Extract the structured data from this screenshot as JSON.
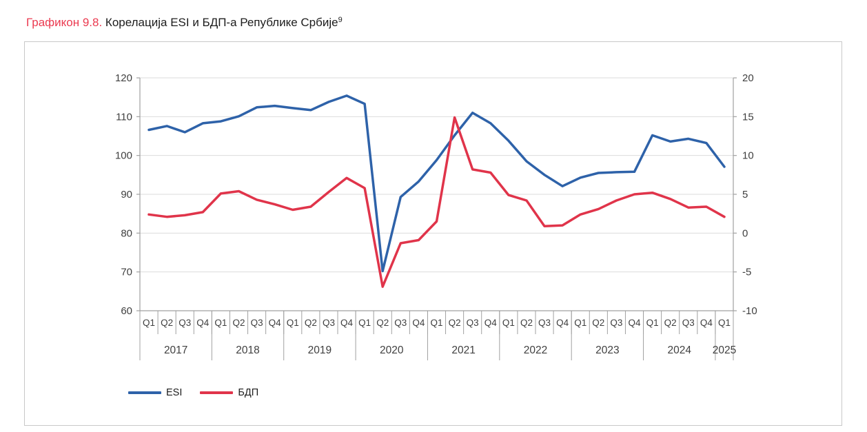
{
  "title": {
    "prefix": "Графикон 9.8.",
    "main": " Корелација ESI и БДП-а Републике Србије",
    "footnote_ref": "9"
  },
  "colors": {
    "title_accent": "#EB3A50",
    "esi_blue": "#2E62A9",
    "gdp_red": "#E0344A",
    "grid": "#DBDBDB",
    "axis": "#A0A0A0",
    "tick_text": "#3F3F3F",
    "box_border": "#C8C8C8"
  },
  "chart_data": {
    "type": "line",
    "title": "Корелација ESI и БДП-а Републике Србије",
    "legend_position": "bottom-left",
    "grid": "horizontal",
    "x_axis": {
      "years": [
        {
          "label": "2017",
          "quarters": [
            "Q1",
            "Q2",
            "Q3",
            "Q4"
          ]
        },
        {
          "label": "2018",
          "quarters": [
            "Q1",
            "Q2",
            "Q3",
            "Q4"
          ]
        },
        {
          "label": "2019",
          "quarters": [
            "Q1",
            "Q2",
            "Q3",
            "Q4"
          ]
        },
        {
          "label": "2020",
          "quarters": [
            "Q1",
            "Q2",
            "Q3",
            "Q4"
          ]
        },
        {
          "label": "2021",
          "quarters": [
            "Q1",
            "Q2",
            "Q3",
            "Q4"
          ]
        },
        {
          "label": "2022",
          "quarters": [
            "Q1",
            "Q2",
            "Q3",
            "Q4"
          ]
        },
        {
          "label": "2023",
          "quarters": [
            "Q1",
            "Q2",
            "Q3",
            "Q4"
          ]
        },
        {
          "label": "2024",
          "quarters": [
            "Q1",
            "Q2",
            "Q3",
            "Q4"
          ]
        },
        {
          "label": "2025",
          "quarters": [
            "Q1"
          ]
        }
      ]
    },
    "left_axis": {
      "min": 60,
      "max": 120,
      "ticks": [
        120,
        110,
        100,
        90,
        80,
        70,
        60
      ]
    },
    "right_axis": {
      "min": -10,
      "max": 20,
      "ticks": [
        20,
        15,
        10,
        5,
        0,
        -5,
        -10
      ]
    },
    "series": [
      {
        "name": "ESI",
        "axis": "left",
        "color": "#2E62A9",
        "values": [
          106.6,
          107.6,
          106.0,
          108.3,
          108.8,
          110.1,
          112.4,
          112.8,
          112.2,
          111.7,
          113.8,
          115.4,
          113.3,
          70.2,
          89.3,
          93.3,
          98.8,
          105.2,
          111.0,
          108.3,
          103.8,
          98.5,
          95.0,
          92.1,
          94.3,
          95.5,
          95.7,
          95.8,
          105.2,
          103.6,
          104.3,
          103.2,
          97.1
        ]
      },
      {
        "name": "БДП",
        "axis": "right",
        "color": "#E0344A",
        "values": [
          2.4,
          2.1,
          2.3,
          2.7,
          5.1,
          5.4,
          4.3,
          3.7,
          3.0,
          3.4,
          5.3,
          7.1,
          5.8,
          -6.9,
          -1.3,
          -0.9,
          1.5,
          14.9,
          8.2,
          7.8,
          4.9,
          4.2,
          0.9,
          1.0,
          2.4,
          3.1,
          4.2,
          5.0,
          5.2,
          4.4,
          3.3,
          3.4,
          2.1
        ]
      }
    ]
  }
}
